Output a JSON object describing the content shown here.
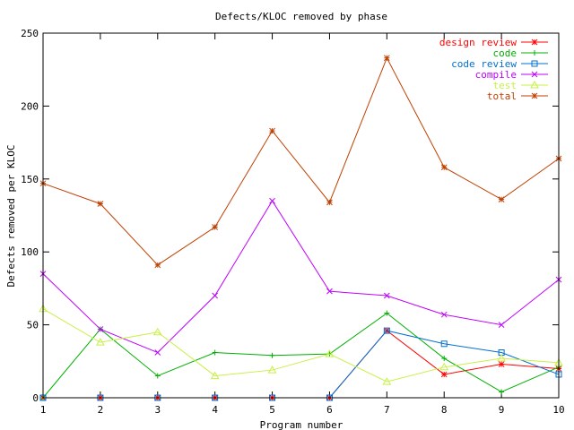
{
  "chart_data": {
    "type": "line",
    "title": "Defects/KLOC removed by phase",
    "xlabel": "Program number",
    "ylabel": "Defects removed per KLOC",
    "x": [
      1,
      2,
      3,
      4,
      5,
      6,
      7,
      8,
      9,
      10
    ],
    "xlim": [
      1,
      10
    ],
    "ylim": [
      0,
      250
    ],
    "xticks": [
      1,
      2,
      3,
      4,
      5,
      6,
      7,
      8,
      9,
      10
    ],
    "yticks": [
      0,
      50,
      100,
      150,
      200,
      250
    ],
    "grid": false,
    "legend_position": "top-right",
    "series": [
      {
        "name": "design review",
        "color": "#ff0000",
        "marker": "plus-cross",
        "values": [
          0,
          0,
          0,
          0,
          0,
          0,
          46,
          16,
          23,
          20
        ]
      },
      {
        "name": "code",
        "color": "#00b000",
        "marker": "plus",
        "values": [
          0,
          47,
          15,
          31,
          29,
          30,
          58,
          27,
          4,
          21
        ]
      },
      {
        "name": "code review",
        "color": "#0070d0",
        "marker": "square",
        "values": [
          0,
          0,
          0,
          0,
          0,
          0,
          46,
          37,
          31,
          16
        ]
      },
      {
        "name": "compile",
        "color": "#c000ff",
        "marker": "x",
        "values": [
          85,
          47,
          31,
          70,
          135,
          73,
          70,
          57,
          50,
          81
        ]
      },
      {
        "name": "test",
        "color": "#c8f048",
        "marker": "triangle",
        "values": [
          61,
          38,
          45,
          15,
          19,
          30,
          11,
          21,
          27,
          24
        ]
      },
      {
        "name": "total",
        "color": "#c04000",
        "marker": "star",
        "values": [
          147,
          133,
          91,
          117,
          183,
          134,
          233,
          158,
          136,
          164
        ]
      }
    ]
  }
}
